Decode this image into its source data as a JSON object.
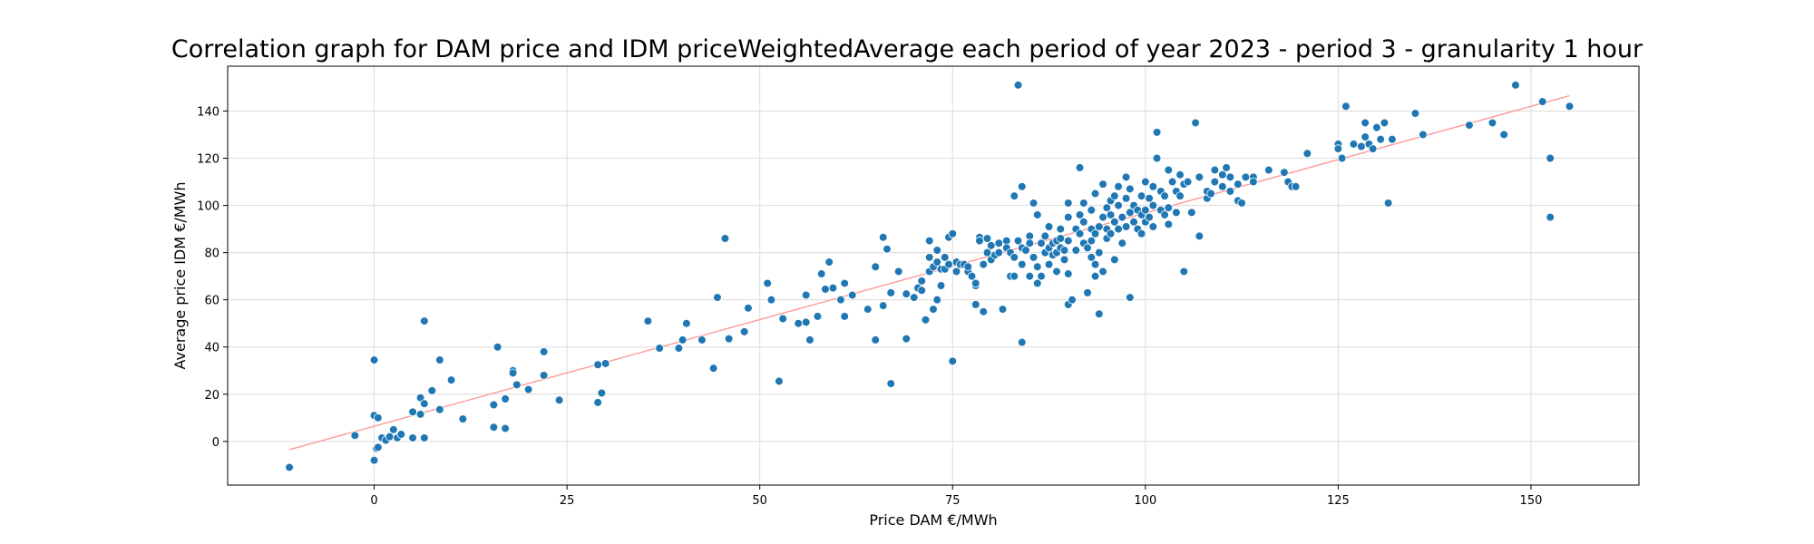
{
  "chart_data": {
    "type": "scatter",
    "title": "Correlation graph for DAM price and IDM priceWeightedAverage each period of year 2023 - period 3 - granularity 1 hour",
    "xlabel": "Price DAM €/MWh",
    "ylabel": "Average price IDM €/MWh",
    "xlim": [
      -19,
      164
    ],
    "ylim": [
      -18.5,
      159
    ],
    "xticks": [
      0,
      25,
      50,
      75,
      100,
      125,
      150
    ],
    "yticks": [
      0,
      20,
      40,
      60,
      80,
      100,
      120,
      140
    ],
    "grid": true,
    "colors": {
      "points": "#1f77b4",
      "point_edge": "#ffffff",
      "trendline": "#ff9999",
      "grid": "#dcdcdc"
    },
    "trendline": {
      "x": [
        -11,
        155
      ],
      "y": [
        -3.5,
        146.5
      ]
    },
    "series": [
      {
        "points": [
          [
            -11,
            -11
          ],
          [
            -2.5,
            2.5
          ],
          [
            0,
            -8
          ],
          [
            0,
            34.5
          ],
          [
            0,
            11
          ],
          [
            0.3,
            -3
          ],
          [
            0.5,
            10
          ],
          [
            0.5,
            -2.5
          ],
          [
            1,
            1.5
          ],
          [
            1.5,
            0.5
          ],
          [
            2,
            2
          ],
          [
            2.5,
            5
          ],
          [
            3,
            1.5
          ],
          [
            3.5,
            3
          ],
          [
            5,
            12.5
          ],
          [
            5,
            1.5
          ],
          [
            6,
            11.5
          ],
          [
            6,
            18.5
          ],
          [
            6.5,
            16
          ],
          [
            6.5,
            51
          ],
          [
            6.5,
            1.5
          ],
          [
            7.5,
            21.5
          ],
          [
            8.5,
            13.5
          ],
          [
            8.5,
            34.5
          ],
          [
            10,
            26
          ],
          [
            11.5,
            9.5
          ],
          [
            15.5,
            15.5
          ],
          [
            15.5,
            6
          ],
          [
            16,
            40
          ],
          [
            17,
            18
          ],
          [
            17,
            5.5
          ],
          [
            18,
            30
          ],
          [
            18,
            29
          ],
          [
            18.5,
            24
          ],
          [
            20,
            22
          ],
          [
            22,
            38
          ],
          [
            22,
            28
          ],
          [
            24,
            17.5
          ],
          [
            29,
            32.5
          ],
          [
            29,
            16.5
          ],
          [
            29.5,
            20.5
          ],
          [
            30,
            33
          ],
          [
            35.5,
            51
          ],
          [
            37,
            39.5
          ],
          [
            39.5,
            39.5
          ],
          [
            40,
            43
          ],
          [
            40.5,
            50
          ],
          [
            42.5,
            43
          ],
          [
            44,
            31
          ],
          [
            44.5,
            61
          ],
          [
            45.5,
            86
          ],
          [
            46,
            43.5
          ],
          [
            48,
            46.5
          ],
          [
            48.5,
            56.5
          ],
          [
            51,
            67
          ],
          [
            51.5,
            60
          ],
          [
            52.5,
            25.5
          ],
          [
            53,
            52
          ],
          [
            55,
            50
          ],
          [
            56,
            62
          ],
          [
            56,
            50.5
          ],
          [
            56.5,
            43
          ],
          [
            57.5,
            53
          ],
          [
            58,
            71
          ],
          [
            58.5,
            64.5
          ],
          [
            59,
            76
          ],
          [
            59.5,
            65
          ],
          [
            60.5,
            60
          ],
          [
            61,
            67
          ],
          [
            61,
            53
          ],
          [
            62,
            62
          ],
          [
            64,
            56
          ],
          [
            65,
            43
          ],
          [
            65,
            74
          ],
          [
            66,
            57.5
          ],
          [
            66,
            86.5
          ],
          [
            66.5,
            81.5
          ],
          [
            67,
            24.5
          ],
          [
            67,
            63
          ],
          [
            68,
            72
          ],
          [
            69,
            43.5
          ],
          [
            69,
            62.5
          ],
          [
            70,
            61
          ],
          [
            70.5,
            65
          ],
          [
            71,
            64
          ],
          [
            71,
            68
          ],
          [
            71.5,
            51.5
          ],
          [
            72,
            78
          ],
          [
            72,
            85
          ],
          [
            72,
            72
          ],
          [
            72.5,
            74
          ],
          [
            72.5,
            56
          ],
          [
            73,
            81
          ],
          [
            73,
            60
          ],
          [
            73,
            76
          ],
          [
            73.5,
            73
          ],
          [
            73.5,
            66
          ],
          [
            74,
            73
          ],
          [
            74,
            78
          ],
          [
            74.5,
            86.5
          ],
          [
            74.5,
            75
          ],
          [
            75,
            34
          ],
          [
            75,
            88
          ],
          [
            75.5,
            72
          ],
          [
            75.5,
            76
          ],
          [
            76,
            75
          ],
          [
            76.5,
            75
          ],
          [
            77,
            72
          ],
          [
            77,
            74
          ],
          [
            77.5,
            70
          ],
          [
            78,
            58
          ],
          [
            78,
            66
          ],
          [
            78,
            67
          ],
          [
            78.5,
            86.5
          ],
          [
            78.5,
            85
          ],
          [
            79,
            75
          ],
          [
            79.5,
            80
          ],
          [
            79.5,
            86
          ],
          [
            79,
            55
          ],
          [
            80,
            83
          ],
          [
            80,
            77
          ],
          [
            80.5,
            79
          ],
          [
            81,
            80
          ],
          [
            81,
            84
          ],
          [
            81.5,
            56
          ],
          [
            82,
            85
          ],
          [
            82,
            82
          ],
          [
            82.5,
            80
          ],
          [
            82.5,
            70
          ],
          [
            83,
            104
          ],
          [
            83,
            78
          ],
          [
            83,
            70
          ],
          [
            83.5,
            85
          ],
          [
            83.5,
            151
          ],
          [
            84,
            82
          ],
          [
            84,
            75
          ],
          [
            84,
            42
          ],
          [
            84,
            108
          ],
          [
            84.5,
            81
          ],
          [
            85,
            87
          ],
          [
            85,
            84
          ],
          [
            85,
            70
          ],
          [
            85.5,
            78
          ],
          [
            85.5,
            101
          ],
          [
            86,
            96
          ],
          [
            86,
            74
          ],
          [
            86,
            67
          ],
          [
            86.5,
            70
          ],
          [
            86.5,
            84
          ],
          [
            87,
            87
          ],
          [
            87,
            80
          ],
          [
            87.5,
            91
          ],
          [
            87.5,
            75
          ],
          [
            87.5,
            82
          ],
          [
            88,
            84
          ],
          [
            88,
            79
          ],
          [
            88.5,
            85
          ],
          [
            88.5,
            80
          ],
          [
            88.5,
            72
          ],
          [
            89,
            90
          ],
          [
            89,
            86
          ],
          [
            89,
            82
          ],
          [
            89.5,
            81
          ],
          [
            89.5,
            77
          ],
          [
            90,
            95
          ],
          [
            90,
            85
          ],
          [
            90,
            71
          ],
          [
            90,
            101
          ],
          [
            90,
            58
          ],
          [
            90.5,
            60
          ],
          [
            91,
            90
          ],
          [
            91,
            81
          ],
          [
            91.5,
            96
          ],
          [
            91.5,
            88
          ],
          [
            91.5,
            116
          ],
          [
            92,
            101
          ],
          [
            92,
            93
          ],
          [
            92,
            84
          ],
          [
            92.5,
            82
          ],
          [
            92.5,
            63
          ],
          [
            93,
            98
          ],
          [
            93,
            90
          ],
          [
            93,
            85
          ],
          [
            93,
            78
          ],
          [
            93.5,
            105
          ],
          [
            93.5,
            88
          ],
          [
            93.5,
            75
          ],
          [
            93.5,
            70
          ],
          [
            94,
            91
          ],
          [
            94,
            80
          ],
          [
            94,
            54
          ],
          [
            94.5,
            109
          ],
          [
            94.5,
            95
          ],
          [
            94.5,
            72
          ],
          [
            95,
            99
          ],
          [
            95,
            90
          ],
          [
            95,
            86
          ],
          [
            95.5,
            102
          ],
          [
            95.5,
            96
          ],
          [
            95.5,
            88
          ],
          [
            96,
            104
          ],
          [
            96,
            93
          ],
          [
            96,
            77
          ],
          [
            96.5,
            100
          ],
          [
            96.5,
            90
          ],
          [
            96.5,
            108
          ],
          [
            97,
            95
          ],
          [
            97,
            84
          ],
          [
            97.5,
            112
          ],
          [
            97.5,
            103
          ],
          [
            97.5,
            91
          ],
          [
            98,
            107
          ],
          [
            98,
            97
          ],
          [
            98,
            61
          ],
          [
            98.5,
            100
          ],
          [
            98.5,
            93
          ],
          [
            99,
            98
          ],
          [
            99,
            90
          ],
          [
            99.5,
            104
          ],
          [
            99.5,
            96
          ],
          [
            99.5,
            88
          ],
          [
            100,
            110
          ],
          [
            100,
            98
          ],
          [
            100,
            93
          ],
          [
            100.5,
            103
          ],
          [
            100.5,
            95
          ],
          [
            101,
            108
          ],
          [
            101,
            100
          ],
          [
            101,
            91
          ],
          [
            101.5,
            131
          ],
          [
            101.5,
            120
          ],
          [
            102,
            106
          ],
          [
            102,
            98
          ],
          [
            102.5,
            104
          ],
          [
            102.5,
            96
          ],
          [
            103,
            115
          ],
          [
            103,
            99
          ],
          [
            103,
            92
          ],
          [
            103.5,
            110
          ],
          [
            104,
            106
          ],
          [
            104,
            97
          ],
          [
            104.5,
            113
          ],
          [
            104.5,
            104
          ],
          [
            105,
            72
          ],
          [
            105,
            109
          ],
          [
            105.5,
            110
          ],
          [
            106,
            97
          ],
          [
            106.5,
            135
          ],
          [
            107,
            87
          ],
          [
            107,
            112
          ],
          [
            108,
            103
          ],
          [
            108,
            106
          ],
          [
            108.5,
            105
          ],
          [
            109,
            115
          ],
          [
            109,
            110
          ],
          [
            110,
            113
          ],
          [
            110,
            108
          ],
          [
            110.5,
            116
          ],
          [
            111,
            112
          ],
          [
            111,
            106
          ],
          [
            112,
            109
          ],
          [
            112,
            102
          ],
          [
            112.5,
            101
          ],
          [
            113,
            112
          ],
          [
            114,
            112
          ],
          [
            114,
            110
          ],
          [
            116,
            115
          ],
          [
            118,
            114
          ],
          [
            118.5,
            110
          ],
          [
            119,
            108
          ],
          [
            119.5,
            108
          ],
          [
            121,
            122
          ],
          [
            125,
            126
          ],
          [
            125,
            124
          ],
          [
            125.5,
            120
          ],
          [
            126,
            142
          ],
          [
            127,
            126
          ],
          [
            128,
            125
          ],
          [
            128.5,
            129
          ],
          [
            128.5,
            135
          ],
          [
            129,
            126
          ],
          [
            129.5,
            124
          ],
          [
            130,
            133
          ],
          [
            130.5,
            128
          ],
          [
            131,
            135
          ],
          [
            131.5,
            101
          ],
          [
            132,
            128
          ],
          [
            135,
            139
          ],
          [
            136,
            130
          ],
          [
            142,
            134
          ],
          [
            145,
            135
          ],
          [
            146.5,
            130
          ],
          [
            148,
            151
          ],
          [
            151.5,
            144
          ],
          [
            152.5,
            120
          ],
          [
            152.5,
            95
          ],
          [
            155,
            142
          ]
        ]
      }
    ]
  }
}
